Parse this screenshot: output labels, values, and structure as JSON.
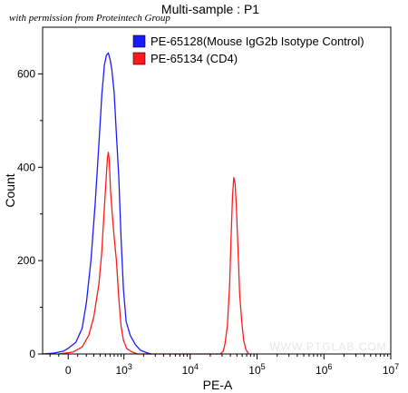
{
  "permission_note": "with permission from Proteintech Group",
  "watermark": "WWW.PTGLAB.COM",
  "chart_data": {
    "type": "line",
    "title": "Multi-sample : P1",
    "xlabel": "PE-A",
    "ylabel": "Count",
    "x_scale": "biexponential",
    "xlim": [
      -300,
      10000000
    ],
    "ylim": [
      0,
      700
    ],
    "y_ticks": [
      0,
      200,
      400,
      600
    ],
    "x_ticks": [
      {
        "value": 0,
        "base": "0",
        "exp": ""
      },
      {
        "value": 1000,
        "base": "10",
        "exp": "3"
      },
      {
        "value": 10000,
        "base": "10",
        "exp": "4"
      },
      {
        "value": 100000,
        "base": "10",
        "exp": "5"
      },
      {
        "value": 1000000,
        "base": "10",
        "exp": "6"
      },
      {
        "value": 10000000,
        "base": "10",
        "exp": "7"
      }
    ],
    "legend_position": "top-right",
    "series": [
      {
        "name": "PE-65128(Mouse IgG2b Isotype Control)",
        "color": "#1a1aff",
        "points": [
          [
            -300,
            0
          ],
          [
            -150,
            2
          ],
          [
            -50,
            6
          ],
          [
            0,
            12
          ],
          [
            80,
            25
          ],
          [
            150,
            55
          ],
          [
            200,
            110
          ],
          [
            260,
            200
          ],
          [
            320,
            320
          ],
          [
            380,
            450
          ],
          [
            430,
            555
          ],
          [
            480,
            620
          ],
          [
            520,
            640
          ],
          [
            560,
            645
          ],
          [
            600,
            630
          ],
          [
            640,
            610
          ],
          [
            700,
            560
          ],
          [
            760,
            470
          ],
          [
            830,
            380
          ],
          [
            900,
            250
          ],
          [
            980,
            140
          ],
          [
            1080,
            70
          ],
          [
            1250,
            40
          ],
          [
            1500,
            20
          ],
          [
            1800,
            8
          ],
          [
            2200,
            3
          ],
          [
            2600,
            0
          ]
        ]
      },
      {
        "name": "PE-65134 (CD4)",
        "color": "#ff1a1a",
        "points": [
          [
            -100,
            0
          ],
          [
            50,
            4
          ],
          [
            150,
            15
          ],
          [
            230,
            40
          ],
          [
            300,
            80
          ],
          [
            380,
            150
          ],
          [
            430,
            220
          ],
          [
            470,
            300
          ],
          [
            510,
            370
          ],
          [
            540,
            420
          ],
          [
            560,
            432
          ],
          [
            580,
            415
          ],
          [
            610,
            350
          ],
          [
            650,
            300
          ],
          [
            700,
            250
          ],
          [
            760,
            200
          ],
          [
            830,
            120
          ],
          [
            900,
            60
          ],
          [
            980,
            30
          ],
          [
            1100,
            12
          ],
          [
            1300,
            5
          ],
          [
            1600,
            0
          ],
          [
            28000,
            0
          ],
          [
            31000,
            5
          ],
          [
            33000,
            20
          ],
          [
            36000,
            60
          ],
          [
            39000,
            150
          ],
          [
            41000,
            250
          ],
          [
            43000,
            340
          ],
          [
            45000,
            378
          ],
          [
            47000,
            365
          ],
          [
            49000,
            320
          ],
          [
            52000,
            220
          ],
          [
            55000,
            130
          ],
          [
            59000,
            70
          ],
          [
            63000,
            30
          ],
          [
            68000,
            10
          ],
          [
            75000,
            0
          ]
        ]
      }
    ]
  }
}
